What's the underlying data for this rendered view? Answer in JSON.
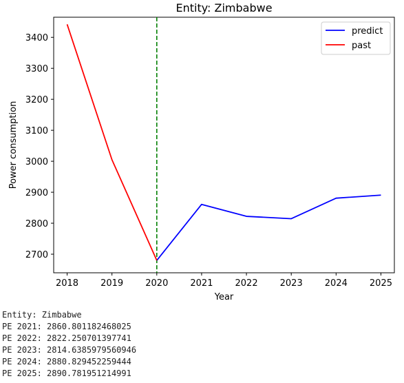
{
  "chart_data": {
    "type": "line",
    "title": "Entity: Zimbabwe",
    "xlabel": "Year",
    "ylabel": "Power consumption",
    "xlim": [
      2017.7,
      2025.3
    ],
    "ylim": [
      2640,
      3465
    ],
    "x_ticks": [
      2018,
      2019,
      2020,
      2021,
      2022,
      2023,
      2024,
      2025
    ],
    "y_ticks": [
      2700,
      2800,
      2900,
      3000,
      3100,
      3200,
      3300,
      3400
    ],
    "grid": false,
    "legend_position": "top-right",
    "series": [
      {
        "name": "predict",
        "color": "#0000ff",
        "x": [
          2020,
          2021,
          2022,
          2023,
          2024,
          2025
        ],
        "y": [
          2680,
          2860.801182468025,
          2822.250701397741,
          2814.6385979560946,
          2880.829452259444,
          2890.781951214991
        ]
      },
      {
        "name": "past",
        "color": "#ff0000",
        "x": [
          2018,
          2019,
          2020
        ],
        "y": [
          3442,
          3005,
          2680
        ]
      }
    ],
    "vline": {
      "x": 2020,
      "color": "#008000",
      "style": "dashed"
    }
  },
  "output": {
    "lines": [
      "Entity: Zimbabwe",
      "PE 2021: 2860.801182468025",
      "PE 2022: 2822.250701397741",
      "PE 2023: 2814.6385979560946",
      "PE 2024: 2880.829452259444",
      "PE 2025: 2890.781951214991"
    ]
  }
}
